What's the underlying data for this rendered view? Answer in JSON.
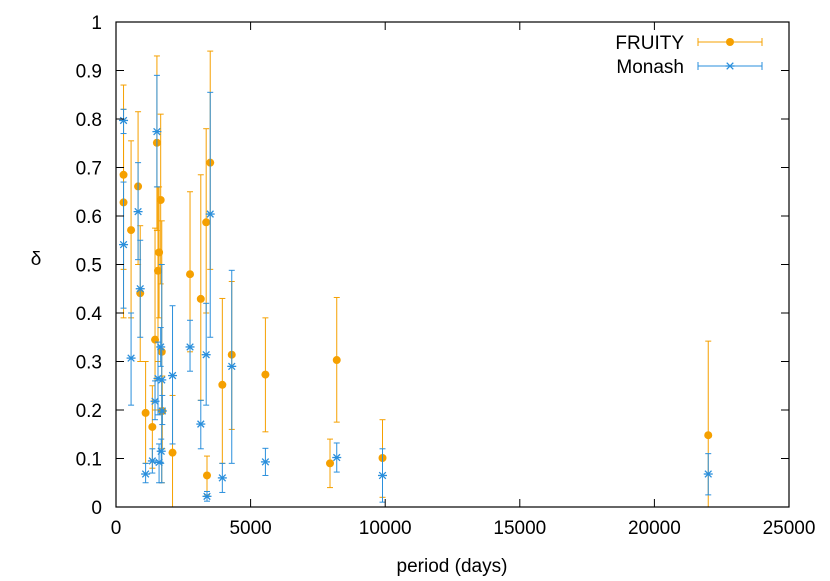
{
  "chart_data": {
    "type": "scatter",
    "xlabel": "period (days)",
    "ylabel": "δ",
    "xlim": [
      0,
      25000
    ],
    "ylim": [
      0,
      1
    ],
    "xticks": [
      "0",
      "5000",
      "10000",
      "15000",
      "20000",
      "25000"
    ],
    "yticks": [
      "0",
      "0.1",
      "0.2",
      "0.3",
      "0.4",
      "0.5",
      "0.6",
      "0.7",
      "0.8",
      "0.9",
      "1"
    ],
    "grid": false,
    "legend_position": "top-right",
    "series": [
      {
        "name": "FRUITY",
        "color": "#f5a000",
        "marker": "filled-circle",
        "points": [
          {
            "x": 280,
            "y": 0.685,
            "lo": 0.49,
            "hi": 0.87
          },
          {
            "x": 280,
            "y": 0.628,
            "lo": 0.39,
            "hi": 0.82
          },
          {
            "x": 560,
            "y": 0.571,
            "lo": 0.39,
            "hi": 0.755
          },
          {
            "x": 820,
            "y": 0.661,
            "lo": 0.5,
            "hi": 0.815
          },
          {
            "x": 900,
            "y": 0.441,
            "lo": 0.3,
            "hi": 0.58
          },
          {
            "x": 1100,
            "y": 0.194,
            "lo": 0.09,
            "hi": 0.3
          },
          {
            "x": 1350,
            "y": 0.165,
            "lo": 0.08,
            "hi": 0.25
          },
          {
            "x": 1450,
            "y": 0.345,
            "lo": 0.2,
            "hi": 0.575
          },
          {
            "x": 1520,
            "y": 0.751,
            "lo": 0.57,
            "hi": 0.93
          },
          {
            "x": 1560,
            "y": 0.487,
            "lo": 0.3,
            "hi": 0.66
          },
          {
            "x": 1600,
            "y": 0.525,
            "lo": 0.39,
            "hi": 0.66
          },
          {
            "x": 1660,
            "y": 0.633,
            "lo": 0.46,
            "hi": 0.81
          },
          {
            "x": 1700,
            "y": 0.32,
            "lo": 0.05,
            "hi": 0.59
          },
          {
            "x": 1720,
            "y": 0.198,
            "lo": 0.12,
            "hi": 0.27
          },
          {
            "x": 2100,
            "y": 0.112,
            "lo": 0.0,
            "hi": 0.23
          },
          {
            "x": 2750,
            "y": 0.48,
            "lo": 0.32,
            "hi": 0.65
          },
          {
            "x": 3150,
            "y": 0.429,
            "lo": 0.22,
            "hi": 0.685
          },
          {
            "x": 3350,
            "y": 0.587,
            "lo": 0.4,
            "hi": 0.78
          },
          {
            "x": 3500,
            "y": 0.71,
            "lo": 0.49,
            "hi": 0.94
          },
          {
            "x": 3380,
            "y": 0.065,
            "lo": 0.025,
            "hi": 0.105
          },
          {
            "x": 3950,
            "y": 0.252,
            "lo": 0.09,
            "hi": 0.43
          },
          {
            "x": 4300,
            "y": 0.314,
            "lo": 0.16,
            "hi": 0.465
          },
          {
            "x": 5550,
            "y": 0.273,
            "lo": 0.155,
            "hi": 0.39
          },
          {
            "x": 7950,
            "y": 0.09,
            "lo": 0.04,
            "hi": 0.14
          },
          {
            "x": 8200,
            "y": 0.303,
            "lo": 0.175,
            "hi": 0.432
          },
          {
            "x": 9900,
            "y": 0.101,
            "lo": 0.02,
            "hi": 0.18
          },
          {
            "x": 22000,
            "y": 0.148,
            "lo": 0.0,
            "hi": 0.342
          }
        ]
      },
      {
        "name": "Monash",
        "color": "#2a8fdc",
        "marker": "asterisk",
        "points": [
          {
            "x": 280,
            "y": 0.797,
            "lo": 0.77,
            "hi": 0.82
          },
          {
            "x": 280,
            "y": 0.541,
            "lo": 0.41,
            "hi": 0.67
          },
          {
            "x": 560,
            "y": 0.307,
            "lo": 0.21,
            "hi": 0.4
          },
          {
            "x": 820,
            "y": 0.609,
            "lo": 0.51,
            "hi": 0.71
          },
          {
            "x": 900,
            "y": 0.45,
            "lo": 0.35,
            "hi": 0.55
          },
          {
            "x": 1100,
            "y": 0.068,
            "lo": 0.05,
            "hi": 0.09
          },
          {
            "x": 1350,
            "y": 0.095,
            "lo": 0.07,
            "hi": 0.12
          },
          {
            "x": 1450,
            "y": 0.218,
            "lo": 0.18,
            "hi": 0.26
          },
          {
            "x": 1520,
            "y": 0.774,
            "lo": 0.66,
            "hi": 0.89
          },
          {
            "x": 1560,
            "y": 0.265,
            "lo": 0.19,
            "hi": 0.34
          },
          {
            "x": 1600,
            "y": 0.092,
            "lo": 0.05,
            "hi": 0.13
          },
          {
            "x": 1660,
            "y": 0.33,
            "lo": 0.29,
            "hi": 0.37
          },
          {
            "x": 1700,
            "y": 0.262,
            "lo": 0.05,
            "hi": 0.5
          },
          {
            "x": 1720,
            "y": 0.198,
            "lo": 0.17,
            "hi": 0.23
          },
          {
            "x": 1680,
            "y": 0.115,
            "lo": 0.09,
            "hi": 0.14
          },
          {
            "x": 2100,
            "y": 0.271,
            "lo": 0.13,
            "hi": 0.415
          },
          {
            "x": 2750,
            "y": 0.33,
            "lo": 0.28,
            "hi": 0.385
          },
          {
            "x": 3150,
            "y": 0.171,
            "lo": 0.12,
            "hi": 0.22
          },
          {
            "x": 3350,
            "y": 0.314,
            "lo": 0.21,
            "hi": 0.42
          },
          {
            "x": 3500,
            "y": 0.604,
            "lo": 0.35,
            "hi": 0.855
          },
          {
            "x": 3380,
            "y": 0.022,
            "lo": 0.012,
            "hi": 0.032
          },
          {
            "x": 3950,
            "y": 0.06,
            "lo": 0.03,
            "hi": 0.09
          },
          {
            "x": 4300,
            "y": 0.29,
            "lo": 0.09,
            "hi": 0.488
          },
          {
            "x": 5550,
            "y": 0.093,
            "lo": 0.065,
            "hi": 0.121
          },
          {
            "x": 8200,
            "y": 0.102,
            "lo": 0.072,
            "hi": 0.132
          },
          {
            "x": 9900,
            "y": 0.065,
            "lo": 0.01,
            "hi": 0.12
          },
          {
            "x": 22000,
            "y": 0.068,
            "lo": 0.025,
            "hi": 0.11
          }
        ]
      }
    ]
  }
}
